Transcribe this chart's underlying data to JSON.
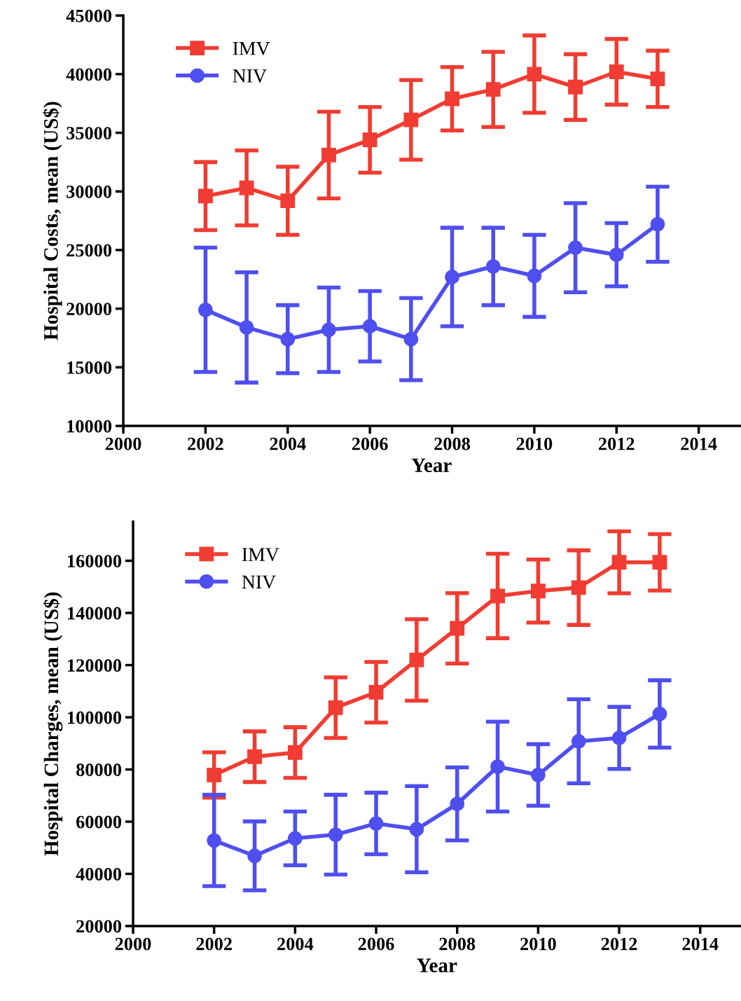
{
  "chart_data": [
    {
      "type": "line",
      "xlabel": "Year",
      "ylabel": "Hospital Costs, mean (US$)",
      "x": [
        2002,
        2003,
        2004,
        2005,
        2006,
        2007,
        2008,
        2009,
        2010,
        2011,
        2012,
        2013
      ],
      "xlim": [
        2000,
        2015
      ],
      "xticks": [
        2000,
        2002,
        2004,
        2006,
        2008,
        2010,
        2012,
        2014
      ],
      "ylim": [
        10000,
        45000
      ],
      "yticks": [
        10000,
        15000,
        20000,
        25000,
        30000,
        35000,
        40000,
        45000
      ],
      "legend": "top left",
      "grid": false,
      "line_style": "solid",
      "series": [
        {
          "name": "IMV",
          "color": "#f03c32",
          "marker": "square",
          "values": [
            29600,
            30300,
            29200,
            33100,
            34400,
            36100,
            37900,
            38700,
            40000,
            38900,
            40200,
            39600
          ],
          "errors": [
            2900,
            3200,
            2900,
            3700,
            2800,
            3400,
            2700,
            3200,
            3300,
            2800,
            2800,
            2400
          ]
        },
        {
          "name": "NIV",
          "color": "#4f4ff0",
          "marker": "circle",
          "values": [
            19900,
            18400,
            17400,
            18200,
            18500,
            17400,
            22700,
            23600,
            22800,
            25200,
            24600,
            27200
          ],
          "errors": [
            5300,
            4700,
            2900,
            3600,
            3000,
            3500,
            4200,
            3300,
            3500,
            3800,
            2700,
            3200
          ]
        }
      ]
    },
    {
      "type": "line",
      "xlabel": "Year",
      "ylabel": "Hospital Charges, mean (US$)",
      "x": [
        2002,
        2003,
        2004,
        2005,
        2006,
        2007,
        2008,
        2009,
        2010,
        2011,
        2012,
        2013
      ],
      "xlim": [
        2000,
        2015
      ],
      "xticks": [
        2000,
        2002,
        2004,
        2006,
        2008,
        2010,
        2012,
        2014
      ],
      "ylim": [
        20000,
        175000
      ],
      "yticks": [
        20000,
        40000,
        60000,
        80000,
        100000,
        120000,
        140000,
        160000
      ],
      "legend": "top left",
      "grid": false,
      "line_style": "solid",
      "series": [
        {
          "name": "IMV",
          "color": "#f03c32",
          "marker": "square",
          "values": [
            77900,
            84900,
            86500,
            103700,
            109600,
            122000,
            134100,
            146500,
            148400,
            149700,
            159400,
            159400
          ],
          "errors": [
            8700,
            9700,
            9700,
            11600,
            11600,
            15600,
            13500,
            16200,
            12100,
            14300,
            11900,
            10800
          ]
        },
        {
          "name": "NIV",
          "color": "#4f4ff0",
          "marker": "circle",
          "values": [
            52800,
            46900,
            53600,
            55000,
            59300,
            57100,
            66800,
            81100,
            77900,
            90800,
            92100,
            101300
          ],
          "errors": [
            17500,
            13200,
            10300,
            15300,
            11800,
            16500,
            14000,
            17200,
            11800,
            16100,
            11900,
            12900
          ]
        }
      ]
    }
  ]
}
